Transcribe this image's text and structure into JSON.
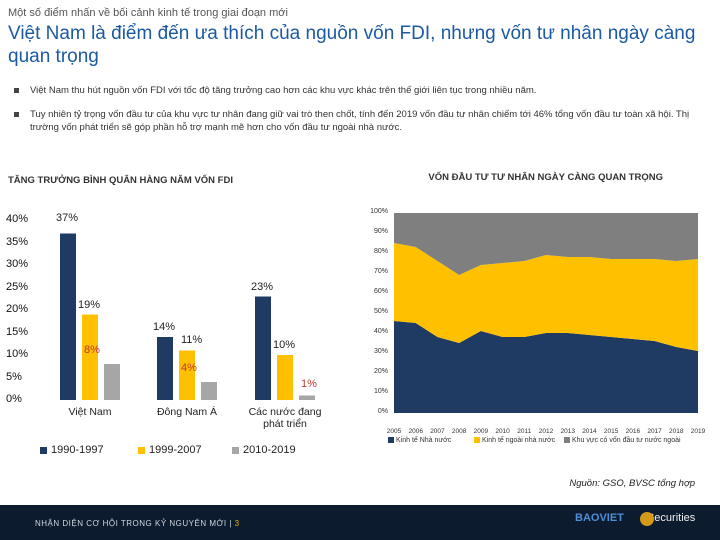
{
  "header": {
    "kicker": "Một số điểm nhấn về bối cảnh kinh tế trong giai đoạn mới",
    "title": "Việt Nam là điểm đến ưa thích của nguồn vốn FDI, nhưng vốn tư nhân ngày càng quan trọng"
  },
  "bullets": [
    "Việt Nam thu hút nguồn vốn FDI với tốc độ tăng trưởng cao hơn các khu vực khác trên thế giới liên tục trong nhiều năm.",
    "Tuy nhiên tỷ trọng vốn đầu tư của khu vực tư nhân đang giữ vai trò then chốt, tính đến 2019 vốn đầu tư nhân chiếm tới 46% tổng vốn đầu tư toàn xã hội. Thị trường vốn phát triển sẽ góp phần hỗ trợ mạnh mẽ hơn cho vốn đầu tư ngoài nhà nước."
  ],
  "colors": {
    "blue": "#1f3a63",
    "yellow": "#ffc000",
    "gray": "#a6a6a6",
    "title": "#1b5aa3"
  },
  "chart_data": [
    {
      "type": "bar",
      "title": "TĂNG TRƯỞNG BÌNH QUÂN HÀNG NĂM VỐN FDI",
      "categories": [
        "Việt Nam",
        "Đông Nam Á",
        "Các nước đang phát triển"
      ],
      "series": [
        {
          "name": "1990-1997",
          "values": [
            37,
            14,
            23
          ],
          "labels": [
            "37%",
            "14%",
            "23%"
          ]
        },
        {
          "name": "1999-2007",
          "values": [
            19,
            11,
            10
          ],
          "labels": [
            "19%",
            "11%",
            "10%"
          ]
        },
        {
          "name": "2010-2019",
          "values": [
            8,
            4,
            1
          ],
          "labels": [
            "8%",
            "4%",
            "1%"
          ]
        }
      ],
      "yticks": [
        "40%",
        "35%",
        "30%",
        "25%",
        "20%",
        "15%",
        "10%",
        "5%",
        "0%"
      ],
      "ylim": [
        0,
        40
      ]
    },
    {
      "type": "area",
      "stacked": true,
      "title": "VỐN ĐẦU TƯ TƯ NHÂN NGÀY CÀNG QUAN TRỌNG",
      "x": [
        "2005",
        "2006",
        "2007",
        "2008",
        "2009",
        "2010",
        "2011",
        "2012",
        "2013",
        "2014",
        "2015",
        "2016",
        "2017",
        "2018",
        "2019"
      ],
      "series": [
        {
          "name": "Kinh tế Nhà nước",
          "values": [
            46,
            45,
            38,
            35,
            41,
            38,
            38,
            40,
            40,
            39,
            38,
            37,
            36,
            33,
            31
          ]
        },
        {
          "name": "Kinh tế ngoài nhà nước",
          "values": [
            39,
            38,
            38,
            34,
            33,
            37,
            38,
            39,
            38,
            39,
            39,
            40,
            41,
            43,
            46
          ]
        },
        {
          "name": "Khu vực có vốn đầu tư nước ngoài",
          "values": [
            15,
            17,
            24,
            31,
            26,
            25,
            24,
            21,
            22,
            22,
            23,
            23,
            23,
            24,
            23
          ]
        }
      ],
      "yticks": [
        "100%",
        "90%",
        "80%",
        "70%",
        "60%",
        "50%",
        "40%",
        "30%",
        "20%",
        "10%",
        "0%"
      ],
      "ylim": [
        0,
        100
      ]
    }
  ],
  "source": "Nguồn: GSO, BVSC tổng hợp",
  "footer": {
    "text": "NHẬN DIỆN CƠ HỘI TRONG KỶ NGUYÊN MỚI",
    "separator": "|",
    "page": "3",
    "logo_brand": "BAOVIET",
    "logo_sub": "Securities"
  }
}
